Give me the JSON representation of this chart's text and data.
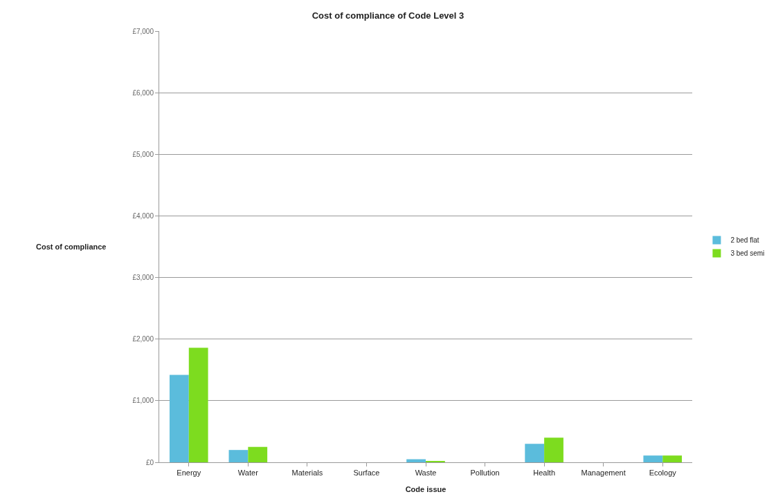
{
  "chart_data": {
    "type": "bar",
    "title": "Cost of compliance of Code Level 3",
    "xlabel": "Code issue",
    "ylabel": "Cost of compliance",
    "categories": [
      "Energy",
      "Water",
      "Materials",
      "Surface",
      "Waste",
      "Pollution",
      "Health",
      "Management",
      "Ecology"
    ],
    "series": [
      {
        "name": "2 bed flat",
        "color": "#5bbcdc",
        "values": [
          1420,
          200,
          0,
          0,
          50,
          0,
          300,
          0,
          110
        ]
      },
      {
        "name": "3 bed semi",
        "color": "#7ddc1f",
        "values": [
          1860,
          250,
          0,
          0,
          20,
          0,
          400,
          0,
          110
        ]
      }
    ],
    "ylim": [
      0,
      7000
    ],
    "yticks": [
      {
        "value": 0,
        "label": "£0"
      },
      {
        "value": 1000,
        "label": "£1,000"
      },
      {
        "value": 2000,
        "label": "£2,000"
      },
      {
        "value": 3000,
        "label": "£3,000"
      },
      {
        "value": 4000,
        "label": "£4,000"
      },
      {
        "value": 5000,
        "label": "£5,000"
      },
      {
        "value": 6000,
        "label": "£6,000"
      },
      {
        "value": 7000,
        "label": "£7,000"
      }
    ],
    "grid": "y",
    "legend": "right"
  }
}
